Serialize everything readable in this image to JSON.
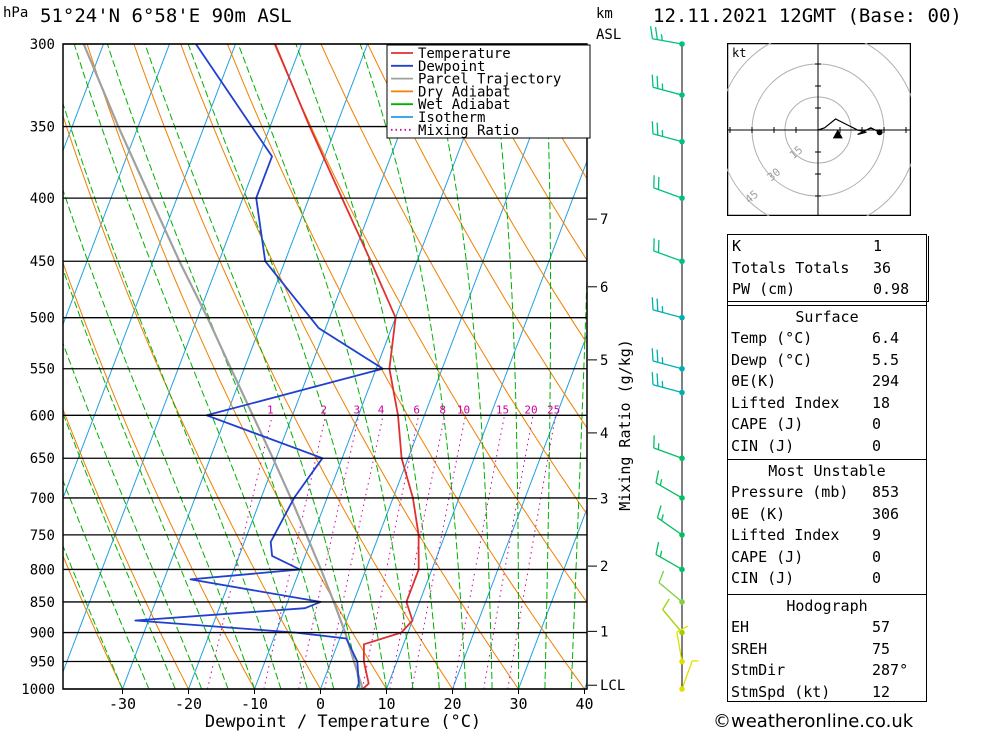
{
  "header": {
    "hpa_unit": "hPa",
    "location": "51°24'N  6°58'E  90m  ASL",
    "km_unit": "km",
    "asl_unit": "ASL",
    "datetime": "12.11.2021  12GMT  (Base: 00)"
  },
  "footer": {
    "credit": "©weatheronline.co.uk"
  },
  "legend": [
    {
      "label": "Temperature",
      "color": "#e03030",
      "style": "solid"
    },
    {
      "label": "Dewpoint",
      "color": "#2040d0",
      "style": "solid"
    },
    {
      "label": "Parcel Trajectory",
      "color": "#a0a0a0",
      "style": "solid"
    },
    {
      "label": "Dry Adiabat",
      "color": "#f08000",
      "style": "solid"
    },
    {
      "label": "Wet Adiabat",
      "color": "#00b000",
      "style": "solid"
    },
    {
      "label": "Isotherm",
      "color": "#20a0e0",
      "style": "solid"
    },
    {
      "label": "Mixing Ratio",
      "color": "#d000a0",
      "style": "dotted"
    }
  ],
  "chart_data": {
    "type": "line",
    "xlabel": "Dewpoint / Temperature (°C)",
    "ylabel": "hPa",
    "right_axis_label": "Mixing Ratio (g/kg)",
    "x_ticks": [
      -30,
      -20,
      -10,
      0,
      10,
      20,
      30,
      40
    ],
    "pressure_levels": [
      300,
      350,
      400,
      450,
      500,
      550,
      600,
      650,
      700,
      750,
      800,
      850,
      900,
      950,
      1000
    ],
    "km_ticks": [
      {
        "label": "7",
        "p": 416
      },
      {
        "label": "6",
        "p": 472
      },
      {
        "label": "5",
        "p": 541
      },
      {
        "label": "4",
        "p": 620
      },
      {
        "label": "3",
        "p": 701
      },
      {
        "label": "2",
        "p": 795
      },
      {
        "label": "1",
        "p": 898
      },
      {
        "label": "LCL",
        "p": 993
      }
    ],
    "mixing_ratio_labels": [
      "1",
      "2",
      "3",
      "4",
      "6",
      "8",
      "10",
      "15",
      "20",
      "25"
    ],
    "mixing_ratio_values": [
      1,
      2,
      3,
      4,
      6,
      8,
      10,
      15,
      20,
      25
    ],
    "temperature": [
      [
        1000,
        6.4
      ],
      [
        990,
        7.0
      ],
      [
        950,
        5.0
      ],
      [
        920,
        4.0
      ],
      [
        900,
        9.0
      ],
      [
        880,
        10.0
      ],
      [
        850,
        8.0
      ],
      [
        800,
        8.0
      ],
      [
        750,
        6.0
      ],
      [
        700,
        3.0
      ],
      [
        650,
        -1.0
      ],
      [
        600,
        -4.0
      ],
      [
        550,
        -8.0
      ],
      [
        500,
        -10.0
      ],
      [
        450,
        -17.0
      ],
      [
        400,
        -25.0
      ],
      [
        350,
        -34.0
      ],
      [
        300,
        -44.0
      ]
    ],
    "dewpoint": [
      [
        1000,
        5.5
      ],
      [
        990,
        5.5
      ],
      [
        950,
        4.0
      ],
      [
        910,
        1.0
      ],
      [
        900,
        -7.0
      ],
      [
        880,
        -32.0
      ],
      [
        860,
        -7.0
      ],
      [
        850,
        -5.0
      ],
      [
        815,
        -26.0
      ],
      [
        800,
        -10.0
      ],
      [
        780,
        -15.0
      ],
      [
        760,
        -16.0
      ],
      [
        700,
        -15.0
      ],
      [
        650,
        -13.0
      ],
      [
        600,
        -33.0
      ],
      [
        550,
        -9.0
      ],
      [
        510,
        -21.0
      ],
      [
        450,
        -33.0
      ],
      [
        400,
        -38.0
      ],
      [
        370,
        -38.0
      ],
      [
        300,
        -56.0
      ]
    ],
    "parcel": [
      [
        1000,
        6.4
      ],
      [
        950,
        3.5
      ],
      [
        900,
        0.5
      ],
      [
        850,
        -3.0
      ],
      [
        800,
        -6.8
      ],
      [
        750,
        -11.0
      ],
      [
        700,
        -15.5
      ],
      [
        650,
        -20.5
      ],
      [
        600,
        -26.0
      ],
      [
        550,
        -32.0
      ],
      [
        500,
        -38.5
      ],
      [
        450,
        -46.0
      ],
      [
        400,
        -54.0
      ],
      [
        350,
        -63.0
      ],
      [
        300,
        -73.0
      ]
    ],
    "wind_barbs": [
      {
        "p": 300,
        "dir": 280,
        "kt": 25
      },
      {
        "p": 330,
        "dir": 285,
        "kt": 25
      },
      {
        "p": 360,
        "dir": 285,
        "kt": 25
      },
      {
        "p": 400,
        "dir": 290,
        "kt": 20
      },
      {
        "p": 450,
        "dir": 290,
        "kt": 20
      },
      {
        "p": 500,
        "dir": 285,
        "kt": 25
      },
      {
        "p": 550,
        "dir": 285,
        "kt": 25
      },
      {
        "p": 575,
        "dir": 285,
        "kt": 25
      },
      {
        "p": 650,
        "dir": 290,
        "kt": 15
      },
      {
        "p": 700,
        "dir": 300,
        "kt": 15
      },
      {
        "p": 750,
        "dir": 305,
        "kt": 15
      },
      {
        "p": 800,
        "dir": 300,
        "kt": 15
      },
      {
        "p": 850,
        "dir": 310,
        "kt": 10
      },
      {
        "p": 900,
        "dir": 320,
        "kt": 10
      },
      {
        "p": 950,
        "dir": 350,
        "kt": 10
      },
      {
        "p": 1000,
        "dir": 20,
        "kt": 5
      }
    ],
    "hodograph": {
      "unit_label": "kt",
      "rings": [
        15,
        30,
        45
      ],
      "ring_labels": [
        "15",
        "30",
        "45"
      ],
      "trace": [
        [
          0,
          0
        ],
        [
          3,
          1
        ],
        [
          8,
          5
        ],
        [
          14,
          2
        ],
        [
          18,
          0
        ],
        [
          22,
          -1
        ],
        [
          18,
          -2
        ],
        [
          24,
          1
        ],
        [
          28,
          -1
        ]
      ],
      "storm_motion": [
        9,
        -2
      ]
    }
  },
  "table": {
    "indices": [
      {
        "label": "K",
        "value": "1"
      },
      {
        "label": "Totals Totals",
        "value": "36"
      },
      {
        "label": "PW (cm)",
        "value": "0.98"
      }
    ],
    "surface": {
      "title": "Surface",
      "rows": [
        {
          "label": "Temp (°C)",
          "value": "6.4"
        },
        {
          "label": "Dewp (°C)",
          "value": "5.5"
        },
        {
          "label": "θE(K)",
          "value": "294"
        },
        {
          "label": "Lifted Index",
          "value": "18"
        },
        {
          "label": "CAPE (J)",
          "value": "0"
        },
        {
          "label": "CIN (J)",
          "value": "0"
        }
      ]
    },
    "most_unstable": {
      "title": "Most Unstable",
      "rows": [
        {
          "label": "Pressure (mb)",
          "value": "853"
        },
        {
          "label": "θE (K)",
          "value": "306"
        },
        {
          "label": "Lifted Index",
          "value": "9"
        },
        {
          "label": "CAPE (J)",
          "value": "0"
        },
        {
          "label": "CIN (J)",
          "value": "0"
        }
      ]
    },
    "hodograph": {
      "title": "Hodograph",
      "rows": [
        {
          "label": "EH",
          "value": "57"
        },
        {
          "label": "SREH",
          "value": "75"
        },
        {
          "label": "StmDir",
          "value": "287°"
        },
        {
          "label": "StmSpd (kt)",
          "value": "12"
        }
      ]
    }
  }
}
